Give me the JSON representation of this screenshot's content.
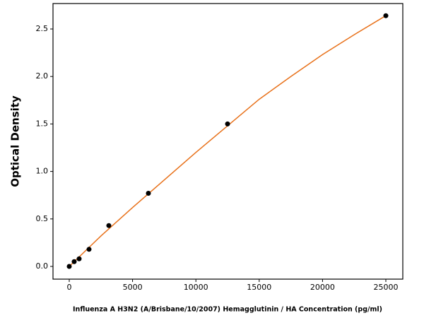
{
  "chart_data": {
    "type": "scatter",
    "xlabel": "Influenza A H3N2 (A/Brisbane/10/2007) Hemagglutinin / HA Concentration (pg/ml)",
    "ylabel": "Optical Density",
    "series": [
      {
        "color": "#000000",
        "x": [
          0,
          390.625,
          781.25,
          1562.5,
          3125,
          6250,
          12500,
          25000
        ],
        "values": [
          0.0,
          0.05,
          0.08,
          0.18,
          0.43,
          0.77,
          1.5,
          2.64
        ]
      },
      {
        "color": "#e8711a",
        "line": true,
        "x": [
          0,
          2500,
          5000,
          7500,
          10000,
          12500,
          15000,
          17500,
          20000,
          22500,
          25000
        ],
        "values": [
          0.0,
          0.32,
          0.62,
          0.91,
          1.2,
          1.48,
          1.76,
          2.0,
          2.23,
          2.44,
          2.64
        ]
      }
    ],
    "xlim": [
      -1283,
      26339
    ],
    "ylim": [
      -0.134,
      2.768
    ],
    "xticks": [
      0,
      5000,
      10000,
      15000,
      20000,
      25000
    ],
    "yticks": [
      {
        "value": 0,
        "label": "0.0"
      },
      {
        "value": 0.5,
        "label": "0.5"
      },
      {
        "value": 1,
        "label": "1.0"
      },
      {
        "value": 1.5,
        "label": "1.5"
      },
      {
        "value": 2,
        "label": "2.0"
      },
      {
        "value": 2.5,
        "label": "2.5"
      }
    ]
  }
}
